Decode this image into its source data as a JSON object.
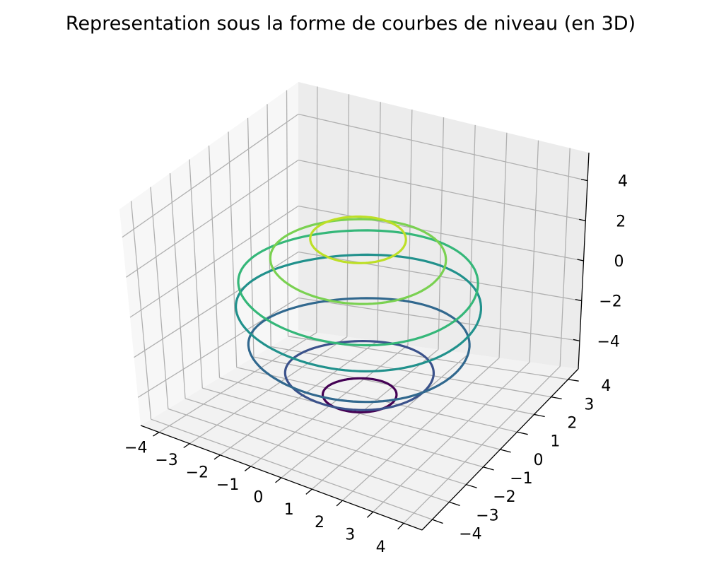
{
  "chart_data": {
    "type": "contour3d",
    "title": "Representation sous la forme de courbes de niveau (en 3D)",
    "xlabel": "",
    "ylabel": "",
    "zlabel": "",
    "xlim": [
      -4.6,
      4.6
    ],
    "ylim": [
      -4.6,
      4.6
    ],
    "zlim": [
      -5.4,
      5.4
    ],
    "x_ticks": [
      -4,
      -3,
      -2,
      -1,
      0,
      1,
      2,
      3,
      4
    ],
    "y_ticks": [
      -4,
      -3,
      -2,
      -1,
      0,
      1,
      2,
      3,
      4
    ],
    "z_ticks": [
      -4,
      -2,
      0,
      2,
      4
    ],
    "grid": true,
    "legend": "none",
    "levels": [
      {
        "z": -4.5,
        "color": "#440154",
        "shape": "loop",
        "radius": 1.05
      },
      {
        "z": -3.5,
        "color": "#3b528b",
        "shape": "loop",
        "radius": 2.1
      },
      {
        "z": -2.2,
        "color": "#31688e",
        "shape": "arc",
        "radius": 3.1
      },
      {
        "z": -0.4,
        "color": "#21918c",
        "shape": "arc",
        "radius": 3.4
      },
      {
        "z": 0.8,
        "color": "#35b779",
        "shape": "arc",
        "radius": 3.3
      },
      {
        "z": 2.0,
        "color": "#7ad151",
        "shape": "loop",
        "radius": 2.4
      },
      {
        "z": 3.0,
        "color": "#bddf26",
        "shape": "loop",
        "radius": 1.3
      }
    ]
  }
}
